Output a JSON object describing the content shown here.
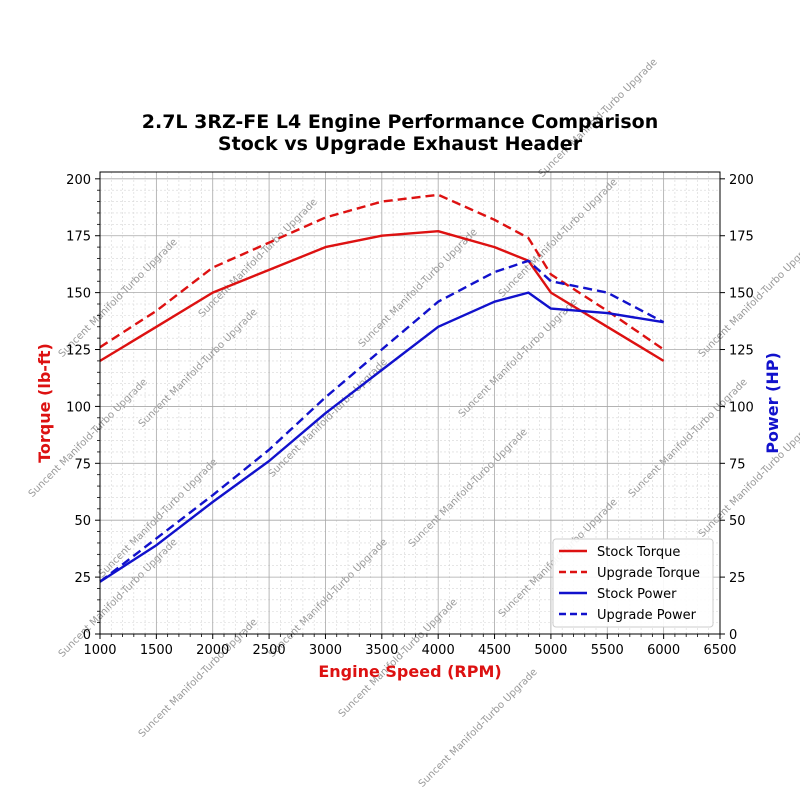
{
  "chart_data": {
    "type": "line",
    "title": "2.7L 3RZ-FE L4 Engine Performance Comparison",
    "subtitle": "Stock vs Upgrade Exhaust Header",
    "xlabel": "Engine Speed (RPM)",
    "ylabel_left": "Torque (lb-ft)",
    "ylabel_right": "Power (HP)",
    "xlim": [
      1000,
      6500
    ],
    "ylim_left": [
      0,
      203
    ],
    "ylim_right": [
      0,
      203
    ],
    "xticks": [
      "1000",
      "1500",
      "2000",
      "2500",
      "3000",
      "3500",
      "4000",
      "4500",
      "5000",
      "5500",
      "6000",
      "6500"
    ],
    "yticks_left": [
      "0",
      "25",
      "50",
      "75",
      "100",
      "125",
      "150",
      "175",
      "200"
    ],
    "yticks_right": [
      "0",
      "25",
      "50",
      "75",
      "100",
      "125",
      "150",
      "175",
      "200"
    ],
    "grid": true,
    "legend_position": "lower-right",
    "watermark": "Suncent Manifold-Turbo Upgrade",
    "series": [
      {
        "name": "Stock Torque",
        "axis": "left",
        "color": "#dd1111",
        "dash": "solid",
        "x": [
          1000,
          1500,
          2000,
          2500,
          3000,
          3500,
          4000,
          4500,
          4800,
          5000,
          5500,
          6000
        ],
        "y": [
          120,
          135,
          150,
          160,
          170,
          175,
          177,
          170,
          164,
          150,
          135,
          120
        ]
      },
      {
        "name": "Upgrade Torque",
        "axis": "left",
        "color": "#dd1111",
        "dash": "dashed",
        "x": [
          1000,
          1500,
          2000,
          2500,
          3000,
          3500,
          4000,
          4500,
          4800,
          5000,
          5500,
          6000
        ],
        "y": [
          126,
          142,
          161,
          172,
          183,
          190,
          193,
          182,
          174,
          158,
          142,
          125
        ]
      },
      {
        "name": "Stock Power",
        "axis": "right",
        "color": "#1111cc",
        "dash": "solid",
        "x": [
          1000,
          1500,
          2000,
          2500,
          3000,
          3500,
          4000,
          4500,
          4800,
          5000,
          5500,
          6000
        ],
        "y": [
          23,
          39,
          58,
          76,
          97,
          116,
          135,
          146,
          150,
          143,
          141,
          137
        ]
      },
      {
        "name": "Upgrade Power",
        "axis": "right",
        "color": "#1111cc",
        "dash": "dashed",
        "x": [
          1000,
          1500,
          2000,
          2500,
          3000,
          3500,
          4000,
          4500,
          4800,
          5000,
          5500,
          6000
        ],
        "y": [
          23,
          42,
          61,
          81,
          104,
          125,
          146,
          159,
          164,
          155,
          150,
          137
        ]
      }
    ]
  },
  "colors": {
    "torque_axis": "#dd1111",
    "power_axis": "#1111cc"
  }
}
